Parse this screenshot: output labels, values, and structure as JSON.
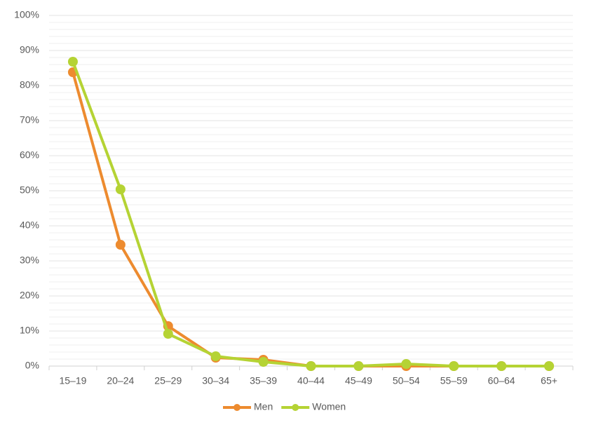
{
  "chart_data": {
    "type": "line",
    "categories": [
      "15–19",
      "20–24",
      "25–29",
      "30–34",
      "35–39",
      "40–44",
      "45–49",
      "50–54",
      "55–59",
      "60–64",
      "65+"
    ],
    "series": [
      {
        "name": "Men",
        "color": "#ed8b2f",
        "values": [
          83.8,
          34.6,
          11.4,
          2.4,
          1.8,
          0,
          0,
          0,
          0,
          0,
          0
        ]
      },
      {
        "name": "Women",
        "color": "#b5d334",
        "values": [
          86.8,
          50.4,
          9.2,
          2.8,
          1.2,
          0,
          0,
          0.6,
          0,
          0,
          0
        ]
      }
    ],
    "ylim": [
      0,
      100
    ],
    "yticks": [
      {
        "value": 0,
        "label": "0%"
      },
      {
        "value": 10,
        "label": "10%"
      },
      {
        "value": 20,
        "label": "20%"
      },
      {
        "value": 30,
        "label": "30%"
      },
      {
        "value": 40,
        "label": "40%"
      },
      {
        "value": 50,
        "label": "50%"
      },
      {
        "value": 60,
        "label": "60%"
      },
      {
        "value": 70,
        "label": "70%"
      },
      {
        "value": 80,
        "label": "80%"
      },
      {
        "value": 90,
        "label": "90%"
      },
      {
        "value": 100,
        "label": "100%"
      }
    ],
    "grid": true,
    "legend": "bottom"
  }
}
